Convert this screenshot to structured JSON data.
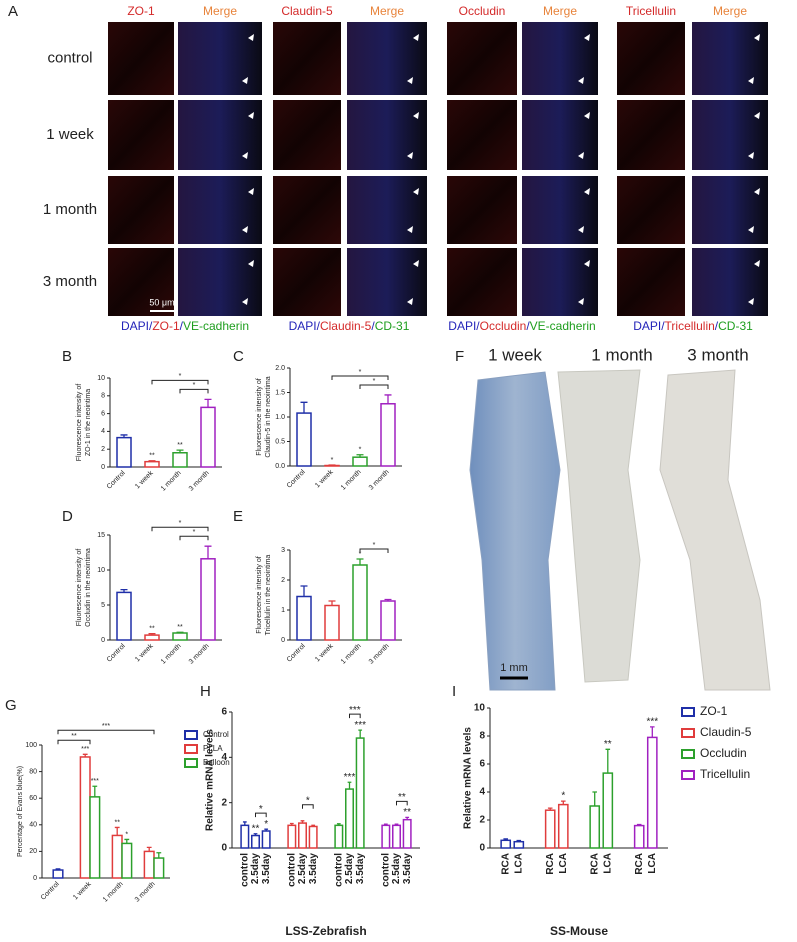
{
  "panel_a": {
    "label": "A",
    "columns": [
      "ZO-1",
      "Merge",
      "Claudin-5",
      "Merge",
      "Occludin",
      "Merge",
      "Tricellulin",
      "Merge"
    ],
    "rows": [
      "control",
      "1 week",
      "1 month",
      "3 month"
    ],
    "scale_bar": "50 μm",
    "captions": [
      [
        {
          "text": "DAPI",
          "color": "#2323b8"
        },
        {
          "text": "/",
          "color": "#2323b8"
        },
        {
          "text": "ZO-1",
          "color": "#d42a2a"
        },
        {
          "text": "/",
          "color": "#2323b8"
        },
        {
          "text": "VE-cadherin",
          "color": "#1e9e1e"
        }
      ],
      [
        {
          "text": "DAPI",
          "color": "#2323b8"
        },
        {
          "text": "/",
          "color": "#2323b8"
        },
        {
          "text": "Claudin-5",
          "color": "#d42a2a"
        },
        {
          "text": "/",
          "color": "#2323b8"
        },
        {
          "text": "CD-31",
          "color": "#1e9e1e"
        }
      ],
      [
        {
          "text": "DAPI",
          "color": "#2323b8"
        },
        {
          "text": "/",
          "color": "#2323b8"
        },
        {
          "text": "Occludin",
          "color": "#d42a2a"
        },
        {
          "text": "/",
          "color": "#2323b8"
        },
        {
          "text": "VE-cadherin",
          "color": "#1e9e1e"
        }
      ],
      [
        {
          "text": "DAPI",
          "color": "#2323b8"
        },
        {
          "text": "/",
          "color": "#2323b8"
        },
        {
          "text": "Tricellulin",
          "color": "#d42a2a"
        },
        {
          "text": "/",
          "color": "#2323b8"
        },
        {
          "text": "CD-31",
          "color": "#1e9e1e"
        }
      ]
    ]
  },
  "panel_f": {
    "label": "F",
    "titles": [
      "1 week",
      "1 month",
      "3 month"
    ],
    "scale_bar": "1 mm"
  },
  "chart_data": [
    {
      "type": "bar",
      "panel": "B",
      "ylabel": [
        "Fluorescence intensity of",
        "ZO-1 in the neointima"
      ],
      "categories": [
        "Control",
        "1 week",
        "1 month",
        "3 month"
      ],
      "values": [
        3.3,
        0.6,
        1.6,
        6.7
      ],
      "errors": [
        0.3,
        0.1,
        0.3,
        0.9
      ],
      "markers": [
        null,
        "**",
        "**",
        null
      ],
      "colors": [
        "#1f2fa8",
        "#e03c3c",
        "#2ca02c",
        "#a020c0"
      ],
      "ylim": [
        0,
        10
      ],
      "yticks": [
        0,
        2,
        4,
        6,
        8,
        10
      ],
      "brackets": [
        {
          "pair": [
            "1 month",
            "3 month"
          ],
          "label": "*"
        },
        {
          "pair": [
            "1 week",
            "3 month"
          ],
          "label": "*"
        }
      ]
    },
    {
      "type": "bar",
      "panel": "C",
      "ylabel": [
        "Fluorescence intensity of",
        "Claudin-5 in the neointima"
      ],
      "categories": [
        "Control",
        "1 week",
        "1 month",
        "3 month"
      ],
      "values": [
        1.08,
        0.01,
        0.18,
        1.27
      ],
      "errors": [
        0.22,
        0.01,
        0.05,
        0.18
      ],
      "markers": [
        null,
        "*",
        "*",
        null
      ],
      "colors": [
        "#1f2fa8",
        "#e03c3c",
        "#2ca02c",
        "#a020c0"
      ],
      "ylim": [
        0,
        2
      ],
      "yticks": [
        {
          "value": 0,
          "label": "0.0"
        },
        0.5,
        {
          "value": 1,
          "label": "1.0"
        },
        1.5,
        {
          "value": 2,
          "label": "2.0"
        }
      ],
      "brackets": [
        {
          "pair": [
            "1 month",
            "3 month"
          ],
          "label": "*"
        },
        {
          "pair": [
            "1 week",
            "3 month"
          ],
          "label": "*"
        }
      ]
    },
    {
      "type": "bar",
      "panel": "D",
      "ylabel": [
        "Fluorescence intensity of",
        "Occludin in the neointima"
      ],
      "categories": [
        "Control",
        "1 week",
        "1 month",
        "3 month"
      ],
      "values": [
        6.8,
        0.7,
        1.0,
        11.6
      ],
      "errors": [
        0.4,
        0.2,
        0.1,
        1.8
      ],
      "markers": [
        null,
        "**",
        "**",
        null
      ],
      "colors": [
        "#1f2fa8",
        "#e03c3c",
        "#2ca02c",
        "#a020c0"
      ],
      "ylim": [
        0,
        15
      ],
      "yticks": [
        0,
        5,
        10,
        15
      ],
      "brackets": [
        {
          "pair": [
            "1 month",
            "3 month"
          ],
          "label": "*"
        },
        {
          "pair": [
            "1 week",
            "3 month"
          ],
          "label": "*"
        }
      ]
    },
    {
      "type": "bar",
      "panel": "E",
      "ylabel": [
        "Fluorescence intensity of",
        "Tricellulin in the neointima"
      ],
      "categories": [
        "Control",
        "1 week",
        "1 month",
        "3 month"
      ],
      "values": [
        1.45,
        1.15,
        2.5,
        1.3
      ],
      "errors": [
        0.35,
        0.15,
        0.2,
        0.05
      ],
      "markers": [
        null,
        null,
        "*",
        null
      ],
      "colors": [
        "#1f2fa8",
        "#e03c3c",
        "#2ca02c",
        "#a020c0"
      ],
      "ylim": [
        0,
        3
      ],
      "yticks": [
        0,
        1,
        2,
        3
      ],
      "brackets": [
        {
          "pair": [
            "1 month",
            "3 month"
          ],
          "label": "*"
        }
      ]
    },
    {
      "type": "grouped_bar",
      "panel": "G",
      "ylabel": [
        "Percentage of Evans blue(%)"
      ],
      "categories": [
        "Control",
        "1 week",
        "1 month",
        "3 month"
      ],
      "legend": "right",
      "ylim": [
        0,
        100
      ],
      "yticks": [
        0,
        20,
        40,
        60,
        80,
        100
      ],
      "series": [
        {
          "name": "Control",
          "color": "#1f2fa8",
          "values": [
            6,
            null,
            null,
            null
          ],
          "errors": [
            0.8,
            null,
            null,
            null
          ]
        },
        {
          "name": "PLLA",
          "color": "#e03c3c",
          "values": [
            null,
            91,
            32,
            20
          ],
          "errors": [
            null,
            2,
            6,
            3
          ],
          "markers": [
            null,
            "***",
            "**",
            null
          ]
        },
        {
          "name": "Balloon",
          "color": "#2ca02c",
          "values": [
            null,
            61,
            26,
            15
          ],
          "errors": [
            null,
            8,
            3,
            4
          ],
          "markers": [
            null,
            "***",
            "*",
            null
          ]
        }
      ],
      "brackets": [
        {
          "pair": [
            "Control",
            "1 week"
          ],
          "label": "**"
        },
        {
          "pair": [
            "Control",
            "3 month"
          ],
          "label": "***"
        }
      ]
    },
    {
      "type": "clustered_bar",
      "panel": "H",
      "ylabel": [
        "Relative mRNA levels"
      ],
      "xlabel": "LSS-Zebrafish",
      "categories": [
        "control",
        "2.5day",
        "3.5day"
      ],
      "ylim": [
        0,
        6
      ],
      "yticks": [
        0,
        2,
        4,
        6
      ],
      "series": [
        {
          "name": "ZO-1",
          "color": "#1f2fa8",
          "values": [
            1.0,
            0.55,
            0.75
          ],
          "errors": [
            0.15,
            0.08,
            0.08
          ],
          "markers": [
            null,
            "**",
            "*"
          ],
          "brackets": [
            {
              "pair": [
                "2.5day",
                "3.5day"
              ],
              "label": "*"
            }
          ]
        },
        {
          "name": "Claudin-5",
          "color": "#e03c3c",
          "values": [
            1.0,
            1.1,
            0.95
          ],
          "errors": [
            0.08,
            0.1,
            0.05
          ],
          "brackets": [
            {
              "pair": [
                "2.5day",
                "3.5day"
              ],
              "label": "*"
            }
          ]
        },
        {
          "name": "Occludin",
          "color": "#2ca02c",
          "values": [
            1.0,
            2.6,
            4.85
          ],
          "errors": [
            0.07,
            0.3,
            0.35
          ],
          "markers": [
            null,
            "***",
            "***"
          ],
          "brackets": [
            {
              "pair": [
                "2.5day",
                "3.5day"
              ],
              "label": "***"
            }
          ]
        },
        {
          "name": "Tricellulin",
          "color": "#a020c0",
          "values": [
            1.0,
            1.0,
            1.25
          ],
          "errors": [
            0.05,
            0.05,
            0.1
          ],
          "markers": [
            null,
            null,
            "**"
          ],
          "brackets": [
            {
              "pair": [
                "2.5day",
                "3.5day"
              ],
              "label": "**"
            }
          ]
        }
      ]
    },
    {
      "type": "clustered_bar",
      "panel": "I",
      "ylabel": [
        "Relative mRNA levels"
      ],
      "xlabel": "SS-Mouse",
      "categories": [
        "RCA",
        "LCA"
      ],
      "legend": "right",
      "ylim": [
        0,
        10
      ],
      "yticks": [
        0,
        2,
        4,
        6,
        8,
        10
      ],
      "series": [
        {
          "name": "ZO-1",
          "color": "#1f2fa8",
          "values": [
            0.55,
            0.45
          ],
          "errors": [
            0.1,
            0.08
          ]
        },
        {
          "name": "Claudin-5",
          "color": "#e03c3c",
          "values": [
            2.7,
            3.1
          ],
          "errors": [
            0.15,
            0.25
          ],
          "markers": [
            null,
            "*"
          ]
        },
        {
          "name": "Occludin",
          "color": "#2ca02c",
          "values": [
            3.0,
            5.35
          ],
          "errors": [
            1.0,
            1.7
          ],
          "markers": [
            null,
            "**"
          ]
        },
        {
          "name": "Tricellulin",
          "color": "#a020c0",
          "values": [
            1.6,
            7.9
          ],
          "errors": [
            0.08,
            0.75
          ],
          "markers": [
            null,
            "***"
          ]
        }
      ]
    }
  ]
}
